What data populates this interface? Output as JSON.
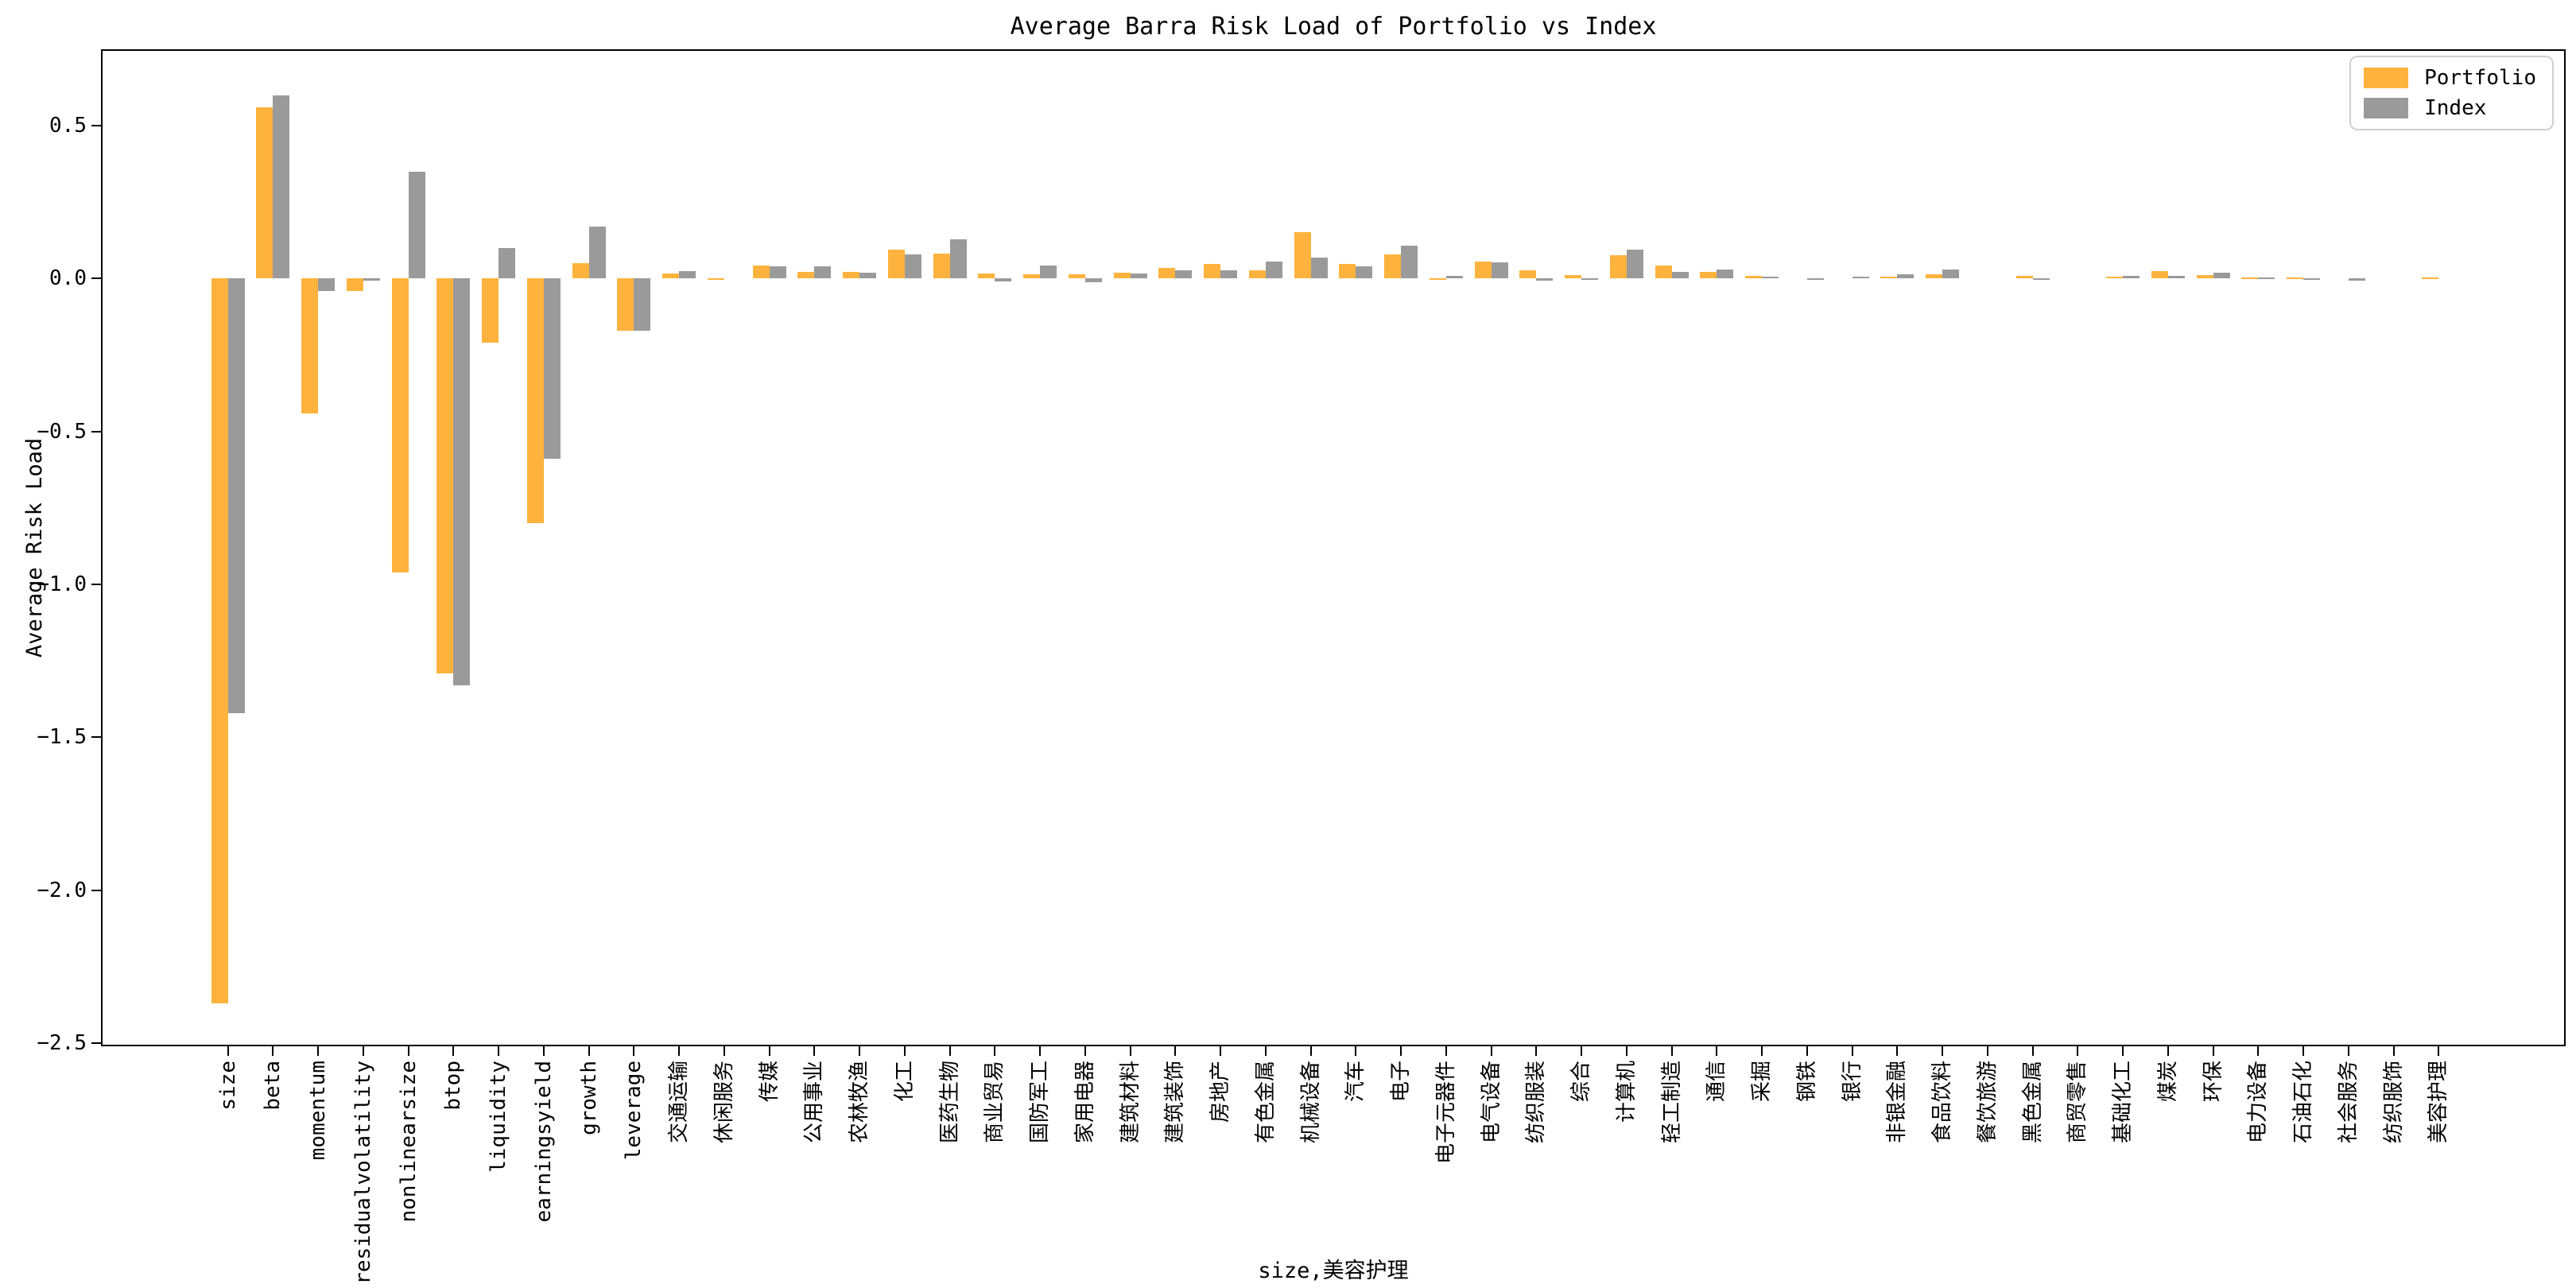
{
  "chart_data": {
    "type": "bar",
    "title": "Average Barra Risk Load of Portfolio vs Index",
    "xlabel": "size,美容护理",
    "ylabel": "Average Risk Load",
    "grid": false,
    "legend_position": "upper right",
    "ylim": [
      -2.51,
      0.75
    ],
    "yticks": [
      0.5,
      0.0,
      -0.5,
      -1.0,
      -1.5,
      -2.0,
      -2.5
    ],
    "categories": [
      "size",
      "beta",
      "momentum",
      "residualvolatility",
      "nonlinearsize",
      "btop",
      "liquidity",
      "earningsyield",
      "growth",
      "leverage",
      "交通运输",
      "休闲服务",
      "传媒",
      "公用事业",
      "农林牧渔",
      "化工",
      "医药生物",
      "商业贸易",
      "国防军工",
      "家用电器",
      "建筑材料",
      "建筑装饰",
      "房地产",
      "有色金属",
      "机械设备",
      "汽车",
      "电子",
      "电子元器件",
      "电气设备",
      "纺织服装",
      "综合",
      "计算机",
      "轻工制造",
      "通信",
      "采掘",
      "钢铁",
      "银行",
      "非银金融",
      "食品饮料",
      "餐饮旅游",
      "黑色金属",
      "商贸零售",
      "基础化工",
      "煤炭",
      "环保",
      "电力设备",
      "石油石化",
      "社会服务",
      "纺织服饰",
      "美容护理"
    ],
    "series": [
      {
        "name": "Portfolio",
        "color": "#FDB33D",
        "values": [
          -2.37,
          0.56,
          -0.44,
          -0.04,
          -0.96,
          -1.29,
          -0.21,
          -0.8,
          0.05,
          -0.17,
          0.018,
          -0.005,
          0.044,
          0.023,
          0.021,
          0.094,
          0.082,
          0.016,
          0.015,
          0.015,
          0.019,
          0.036,
          0.047,
          0.026,
          0.152,
          0.048,
          0.078,
          -0.005,
          0.055,
          0.028,
          0.011,
          0.076,
          0.042,
          0.021,
          0.008,
          0,
          0,
          0.007,
          0.013,
          0,
          0.008,
          0,
          0.006,
          0.024,
          0.011,
          0.004,
          0.003,
          0,
          0,
          0.005
        ]
      },
      {
        "name": "Index",
        "color": "#9A9A9A",
        "values": [
          -1.42,
          0.6,
          -0.04,
          -0.006,
          0.35,
          -1.33,
          0.1,
          -0.59,
          0.17,
          -0.17,
          0.025,
          0,
          0.041,
          0.04,
          0.019,
          0.08,
          0.129,
          -0.01,
          0.044,
          -0.011,
          0.016,
          0.028,
          0.028,
          0.056,
          0.07,
          0.041,
          0.108,
          0.01,
          0.052,
          -0.007,
          -0.003,
          0.095,
          0.021,
          0.031,
          0.006,
          -0.004,
          0.007,
          0.014,
          0.029,
          0,
          -0.003,
          0,
          0.009,
          0.01,
          0.02,
          0.004,
          -0.003,
          -0.006,
          0,
          0
        ]
      }
    ]
  }
}
